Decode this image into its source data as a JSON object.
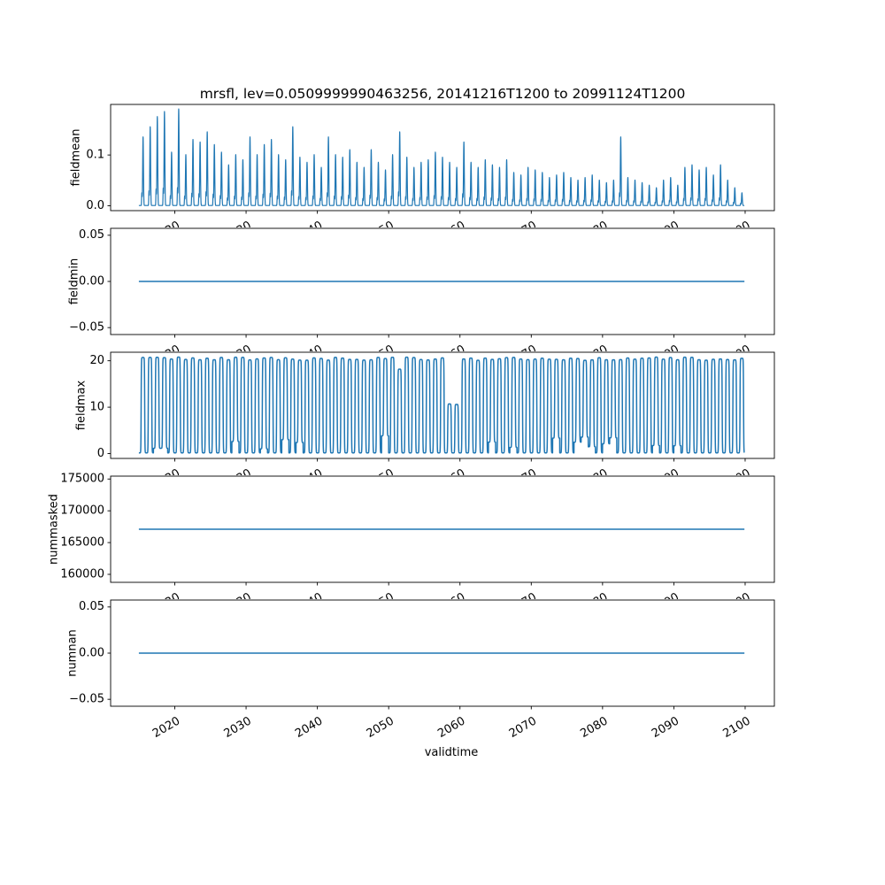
{
  "figure": {
    "title": "mrsfl, lev=0.0509999990463256, 20141216T1200 to 20991124T1200",
    "xlabel": "validtime",
    "line_color": "#1f77b4",
    "background_color": "#ffffff",
    "time_range": "20141216T1200 to 20991124T1200",
    "x_data_start": 2014.96,
    "x_data_end": 2099.9,
    "xlim": [
      2011.0,
      2104.1
    ],
    "xticks": [
      2020,
      2030,
      2040,
      2050,
      2060,
      2070,
      2080,
      2090,
      2100
    ],
    "xtick_labels": [
      "2020",
      "2030",
      "2040",
      "2050",
      "2060",
      "2070",
      "2080",
      "2090",
      "2100"
    ]
  },
  "chart_data": [
    {
      "type": "line",
      "name": "fieldmean",
      "ylabel": "fieldmean",
      "ylim": [
        -0.0095,
        0.1995
      ],
      "yticks": [
        0.0,
        0.1
      ],
      "ytick_labels": [
        "0.0",
        "0.1"
      ],
      "series_kind": "annual_spikes",
      "spike_years_start": 2015,
      "baseline_value": 0.0,
      "annual_peak_values": [
        0.135,
        0.155,
        0.175,
        0.185,
        0.105,
        0.19,
        0.1,
        0.13,
        0.125,
        0.145,
        0.12,
        0.105,
        0.08,
        0.1,
        0.09,
        0.135,
        0.1,
        0.12,
        0.13,
        0.1,
        0.09,
        0.155,
        0.095,
        0.085,
        0.1,
        0.075,
        0.135,
        0.1,
        0.095,
        0.11,
        0.085,
        0.075,
        0.11,
        0.085,
        0.07,
        0.1,
        0.145,
        0.095,
        0.075,
        0.085,
        0.09,
        0.105,
        0.095,
        0.085,
        0.075,
        0.125,
        0.085,
        0.075,
        0.09,
        0.08,
        0.075,
        0.09,
        0.065,
        0.06,
        0.075,
        0.07,
        0.065,
        0.055,
        0.06,
        0.065,
        0.055,
        0.05,
        0.055,
        0.06,
        0.05,
        0.045,
        0.05,
        0.135,
        0.055,
        0.05,
        0.045,
        0.04,
        0.035,
        0.05,
        0.055,
        0.04,
        0.075,
        0.08,
        0.07,
        0.075,
        0.06,
        0.08,
        0.05,
        0.035,
        0.025
      ]
    },
    {
      "type": "line",
      "name": "fieldmin",
      "ylabel": "fieldmin",
      "ylim": [
        -0.0575,
        0.0575
      ],
      "yticks": [
        -0.05,
        0.0,
        0.05
      ],
      "ytick_labels": [
        "−0.05",
        "0.00",
        "0.05"
      ],
      "series_kind": "constant",
      "constant_value": 0.0
    },
    {
      "type": "line",
      "name": "fieldmax",
      "ylabel": "fieldmax",
      "ylim": [
        -1.04,
        21.84
      ],
      "yticks": [
        0,
        10,
        20
      ],
      "ytick_labels": [
        "0",
        "10",
        "20"
      ],
      "series_kind": "annual_square_oscillation",
      "oscillation_low": 0.0,
      "oscillation_high_typical": 20.8,
      "reduced_amplitude_years": {
        "2051": 18.2,
        "2058": 10.7,
        "2059": 10.6
      }
    },
    {
      "type": "line",
      "name": "nummasked",
      "ylabel": "nummasked",
      "ylim": [
        158745,
        175455
      ],
      "yticks": [
        160000,
        165000,
        170000,
        175000
      ],
      "ytick_labels": [
        "160000",
        "165000",
        "170000",
        "175000"
      ],
      "series_kind": "constant",
      "constant_value": 167100
    },
    {
      "type": "line",
      "name": "numnan",
      "ylabel": "numnan",
      "ylim": [
        -0.0575,
        0.0575
      ],
      "yticks": [
        -0.05,
        0.0,
        0.05
      ],
      "ytick_labels": [
        "−0.05",
        "0.00",
        "0.05"
      ],
      "series_kind": "constant",
      "constant_value": 0.0
    }
  ]
}
